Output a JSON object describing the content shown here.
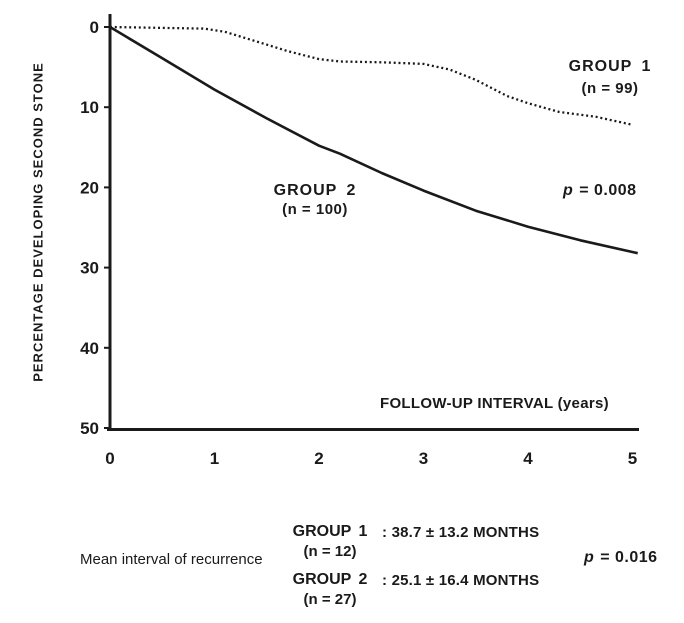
{
  "colors": {
    "ink": "#1a1a1a",
    "paper": "#ffffff"
  },
  "chart_data": {
    "type": "line",
    "xlabel": "FOLLOW-UP INTERVAL (years)",
    "ylabel": "PERCENTAGE DEVELOPING SECOND STONE",
    "xlim": [
      0,
      5
    ],
    "ylim": [
      0,
      50
    ],
    "y_axis_inverted": true,
    "grid": false,
    "x_ticks": [
      0,
      1,
      2,
      3,
      4,
      5
    ],
    "y_ticks": [
      0,
      10,
      20,
      30,
      40,
      50
    ],
    "p_value": "p = 0.008",
    "p_label": "p",
    "p_text": " = 0.008",
    "series": [
      {
        "name": "GROUP 1",
        "label": "GROUP 1",
        "n_label": "(n = 99)",
        "n": 99,
        "line_style": "dotted",
        "color": "#1a1a1a",
        "points": [
          [
            0,
            0
          ],
          [
            0.9,
            0.2
          ],
          [
            1.1,
            0.6
          ],
          [
            1.4,
            1.8
          ],
          [
            1.7,
            3.0
          ],
          [
            2.0,
            4.0
          ],
          [
            2.2,
            4.3
          ],
          [
            2.6,
            4.4
          ],
          [
            3.0,
            4.6
          ],
          [
            3.25,
            5.3
          ],
          [
            3.5,
            6.6
          ],
          [
            3.8,
            8.6
          ],
          [
            4.0,
            9.5
          ],
          [
            4.3,
            10.6
          ],
          [
            4.65,
            11.2
          ],
          [
            5.0,
            12.2
          ]
        ],
        "approx_values_at_years_0_to_5": [
          0,
          0.4,
          4.0,
          4.6,
          9.5,
          12.2
        ]
      },
      {
        "name": "GROUP 2",
        "label": "GROUP 2",
        "n_label": "(n = 100)",
        "n": 100,
        "line_style": "solid",
        "color": "#1a1a1a",
        "points": [
          [
            0,
            0
          ],
          [
            0.5,
            3.9
          ],
          [
            1.0,
            7.8
          ],
          [
            1.5,
            11.4
          ],
          [
            2.0,
            14.8
          ],
          [
            2.2,
            15.8
          ],
          [
            2.6,
            18.2
          ],
          [
            3.0,
            20.4
          ],
          [
            3.5,
            22.9
          ],
          [
            4.0,
            24.9
          ],
          [
            4.5,
            26.6
          ],
          [
            5.05,
            28.2
          ]
        ],
        "approx_values_at_years_0_to_5": [
          0,
          7.8,
          14.8,
          20.4,
          24.9,
          28.2
        ]
      }
    ]
  },
  "caption": {
    "label": "Mean interval of recurrence",
    "rows": [
      {
        "group": "GROUP 1",
        "n_label": "(n = 12)",
        "value": ": 38.7 ± 13.2 MONTHS"
      },
      {
        "group": "GROUP 2",
        "n_label": "(n = 27)",
        "value": ": 25.1 ± 16.4 MONTHS"
      }
    ],
    "p_value": "p = 0.016",
    "p_label": "p",
    "p_text": " = 0.016"
  }
}
